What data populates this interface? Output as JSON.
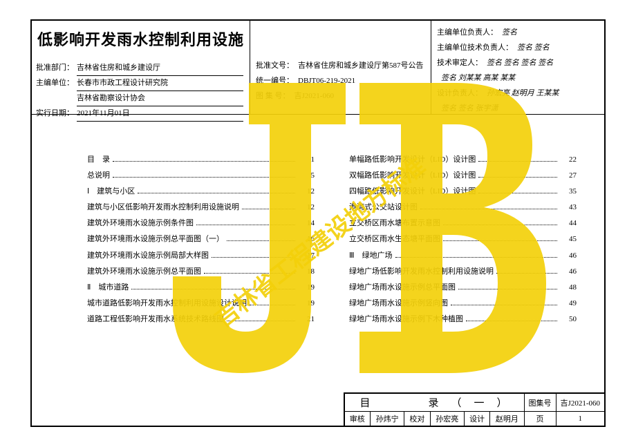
{
  "colors": {
    "watermark": "#f3d00a",
    "border": "#000000",
    "text": "#000000",
    "bg": "#ffffff"
  },
  "title": "低影响开发雨水控制利用设施",
  "header_left": {
    "rows": [
      {
        "label": "批准部门：",
        "value": "吉林省住房和城乡建设厅"
      },
      {
        "label": "主编单位：",
        "value": "长春市市政工程设计研究院\n吉林省勘察设计协会"
      },
      {
        "label": "实行日期：",
        "value": "2021年11月01日"
      }
    ]
  },
  "header_mid": {
    "rows": [
      {
        "label": "批准文号：",
        "value": "吉林省住房和城乡建设厅第587号公告"
      },
      {
        "label": "统一编号：",
        "value": "DBJT06-219-2021"
      },
      {
        "label": "图 集 号：",
        "value": "吉J2021-060"
      }
    ]
  },
  "header_right": {
    "rows": [
      {
        "label": "主编单位负责人：",
        "sig": "签名"
      },
      {
        "label": "主编单位技术负责人：",
        "sig": "签名 签名"
      },
      {
        "label": "技术审定人：",
        "sig": "签名 签名 签名 签名"
      },
      {
        "label": "",
        "sig": "签名 刘某某 高某 某某"
      },
      {
        "label": "设计负责人：",
        "sig": "孙宏亮 赵明月 王某某"
      },
      {
        "label": "",
        "sig": "签名 签名 张宇潇"
      }
    ]
  },
  "toc_left": [
    {
      "label": "目　录",
      "page": "1"
    },
    {
      "label": "总说明",
      "page": "5"
    },
    {
      "label": "Ⅰ　建筑与小区",
      "page": "12"
    },
    {
      "label": "建筑与小区低影响开发雨水控制利用设施说明",
      "page": "12"
    },
    {
      "label": "建筑外环境雨水设施示例条件图",
      "page": "14"
    },
    {
      "label": "建筑外环境雨水设施示例总平面图（一）",
      "page": "16"
    },
    {
      "label": "建筑外环境雨水设施示例局部大样图",
      "page": "17"
    },
    {
      "label": "建筑外环境雨水设施示例总平面图",
      "page": "18"
    },
    {
      "label": "Ⅱ　城市道路",
      "page": "19"
    },
    {
      "label": "城市道路低影响开发雨水控制利用设施设计说明",
      "page": "19"
    },
    {
      "label": "道路工程低影响开发雨水系统技术路线图",
      "page": "21"
    }
  ],
  "toc_right": [
    {
      "label": "单幅路低影响开发设计（LID）设计图",
      "page": "22"
    },
    {
      "label": "双幅路低影响开发设计（LID）设计图",
      "page": "27"
    },
    {
      "label": "四幅路低影响开发设计（LID）设计图",
      "page": "35"
    },
    {
      "label": "港湾式公交站设计图",
      "page": "43"
    },
    {
      "label": "立交桥区雨水塘布置示意图",
      "page": "44"
    },
    {
      "label": "立交桥区雨水生态塘平面图",
      "page": "45"
    },
    {
      "label": "Ⅲ　绿地广场",
      "page": "46"
    },
    {
      "label": "绿地广场低影响开发雨水控制利用设施说明",
      "page": "46"
    },
    {
      "label": "绿地广场雨水设施示例总平面图",
      "page": "48"
    },
    {
      "label": "绿地广场雨水设施示例竖向图",
      "page": "49"
    },
    {
      "label": "绿地广场雨水设施示例下木种植图",
      "page": "50"
    }
  ],
  "footer": {
    "title": "目　　录（一）",
    "set_label": "图集号",
    "set_value": "吉J2021-060",
    "cells": [
      {
        "k": "审核",
        "v": "孙炜宁"
      },
      {
        "k": "校对",
        "v": "孙宏亮"
      },
      {
        "k": "设计",
        "v": "赵明月"
      },
      {
        "k": "页",
        "v": "1"
      }
    ]
  },
  "watermark_text": "吉林省工程建设地方标准"
}
